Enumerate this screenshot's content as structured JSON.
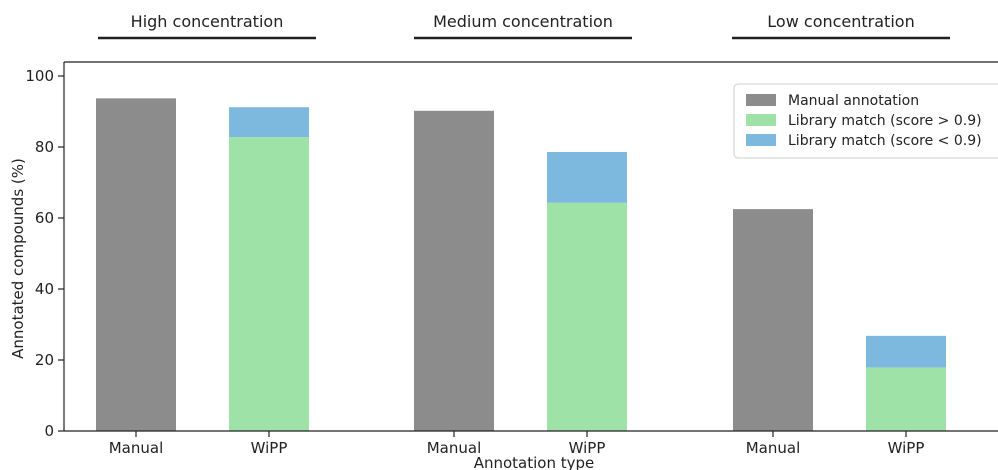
{
  "chart_data": {
    "type": "bar",
    "stacked": true,
    "xlabel": "Annotation type",
    "ylabel": "Annotated compounds (%)",
    "ylim": [
      0,
      100
    ],
    "yticks": [
      0,
      20,
      40,
      60,
      80,
      100
    ],
    "grid": false,
    "legend_placement": "top-right",
    "groups": [
      {
        "title": "High concentration",
        "categories": [
          "Manual",
          "WiPP"
        ]
      },
      {
        "title": "Medium concentration",
        "categories": [
          "Manual",
          "WiPP"
        ]
      },
      {
        "title": "Low concentration",
        "categories": [
          "Manual",
          "WiPP"
        ]
      }
    ],
    "categories": [
      "Manual",
      "WiPP",
      "Manual",
      "WiPP",
      "Manual",
      "WiPP"
    ],
    "series": [
      {
        "name": "Manual annotation",
        "color": "#8c8c8c",
        "values": [
          93.7,
          0,
          90.2,
          0,
          62.5,
          0
        ]
      },
      {
        "name": "Library match (score > 0.9)",
        "color": "#9fe2a8",
        "values": [
          0,
          82.8,
          0,
          64.3,
          0,
          17.9
        ]
      },
      {
        "name": "Library match (score < 0.9)",
        "color": "#7db9df",
        "values": [
          0,
          8.4,
          0,
          14.3,
          0,
          8.9
        ]
      }
    ]
  }
}
